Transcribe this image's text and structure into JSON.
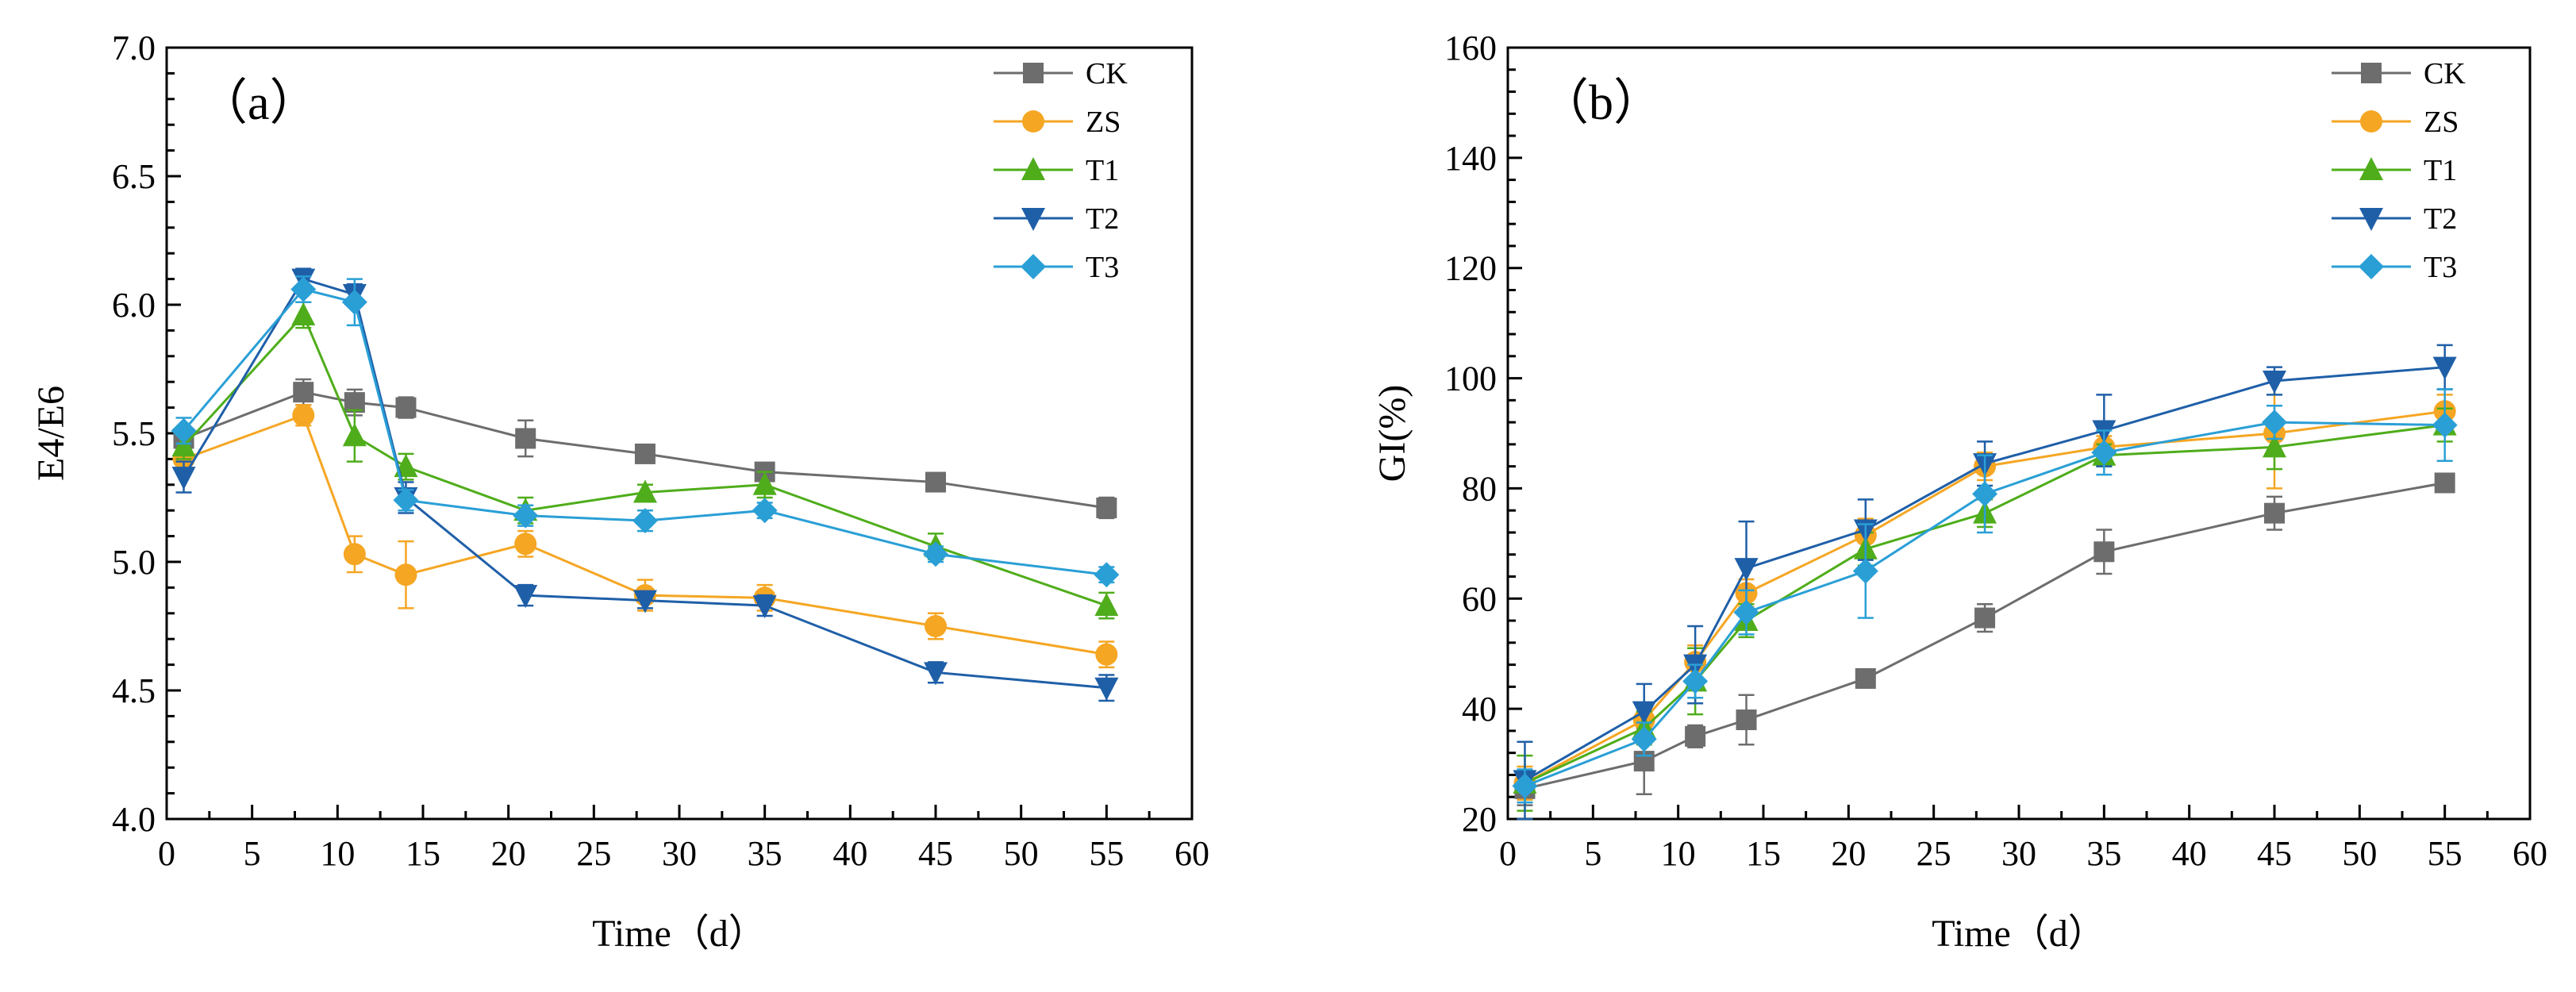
{
  "chart_data": [
    {
      "type": "line",
      "panel_label": "（a）",
      "xlabel": "Time（d）",
      "ylabel": "E4/E6",
      "xlim": [
        0,
        60
      ],
      "ylim": [
        4.0,
        7.0
      ],
      "xticks": [
        0,
        5,
        10,
        15,
        20,
        25,
        30,
        35,
        40,
        45,
        50,
        55,
        60
      ],
      "yticks": [
        4.0,
        4.5,
        5.0,
        5.5,
        6.0,
        6.5,
        7.0
      ],
      "ytick_labels": [
        "4.0",
        "4.5",
        "5.0",
        "5.5",
        "6.0",
        "6.5",
        "7.0"
      ],
      "x": [
        1,
        8,
        11,
        14,
        21,
        28,
        35,
        45,
        55
      ],
      "legend_position": "top-right",
      "series": [
        {
          "name": "CK",
          "color": "#6d6d6d",
          "marker": "square",
          "values": [
            5.48,
            5.66,
            5.62,
            5.6,
            5.48,
            5.42,
            5.35,
            5.31,
            5.21
          ],
          "errors": [
            0.04,
            0.05,
            0.05,
            0.04,
            0.07,
            0.02,
            0.02,
            0.02,
            0.04
          ]
        },
        {
          "name": "ZS",
          "color": "#f5a623",
          "marker": "circle",
          "values": [
            5.4,
            5.57,
            5.03,
            4.95,
            5.07,
            4.87,
            4.86,
            4.75,
            4.64
          ],
          "errors": [
            0.03,
            0.04,
            0.07,
            0.13,
            0.05,
            0.06,
            0.05,
            0.05,
            0.05
          ]
        },
        {
          "name": "T1",
          "color": "#4fad1b",
          "marker": "triangle-up",
          "values": [
            5.45,
            5.96,
            5.49,
            5.37,
            5.2,
            5.27,
            5.3,
            5.06,
            4.83
          ],
          "errors": [
            0.05,
            0.05,
            0.1,
            0.05,
            0.05,
            0.03,
            0.05,
            0.05,
            0.05
          ]
        },
        {
          "name": "T2",
          "color": "#1f5fa8",
          "marker": "triangle-down",
          "values": [
            5.33,
            6.1,
            6.04,
            5.25,
            4.87,
            4.85,
            4.83,
            4.57,
            4.51
          ],
          "errors": [
            0.06,
            0.04,
            0.04,
            0.06,
            0.04,
            0.03,
            0.04,
            0.04,
            0.05
          ]
        },
        {
          "name": "T3",
          "color": "#2a9fd6",
          "marker": "diamond",
          "values": [
            5.51,
            6.06,
            6.01,
            5.24,
            5.18,
            5.16,
            5.2,
            5.03,
            4.95
          ],
          "errors": [
            0.05,
            0.05,
            0.09,
            0.04,
            0.04,
            0.04,
            0.03,
            0.03,
            0.03
          ]
        }
      ]
    },
    {
      "type": "line",
      "panel_label": "（b）",
      "xlabel": "Time（d）",
      "ylabel": "GI(%)",
      "xlim": [
        0,
        60
      ],
      "ylim": [
        20,
        160
      ],
      "xticks": [
        0,
        5,
        10,
        15,
        20,
        25,
        30,
        35,
        40,
        45,
        50,
        55,
        60
      ],
      "yticks": [
        20,
        40,
        60,
        80,
        100,
        120,
        140,
        160
      ],
      "ytick_labels": [
        "20",
        "40",
        "60",
        "80",
        "100",
        "120",
        "140",
        "160"
      ],
      "x": [
        1,
        8,
        11,
        14,
        21,
        28,
        35,
        45,
        55
      ],
      "legend_position": "top-right",
      "series": [
        {
          "name": "CK",
          "color": "#6d6d6d",
          "marker": "square",
          "values": [
            25.5,
            30.5,
            35.0,
            38.0,
            45.5,
            56.5,
            68.5,
            75.5,
            81.0
          ],
          "errors": [
            3.0,
            6.0,
            2.0,
            4.5,
            1.0,
            2.5,
            4.0,
            3.0,
            1.0
          ]
        },
        {
          "name": "ZS",
          "color": "#f5a623",
          "marker": "circle",
          "values": [
            26.5,
            38.0,
            48.5,
            61.0,
            71.5,
            84.0,
            87.5,
            90.0,
            94.0
          ],
          "errors": [
            3.0,
            3.0,
            3.0,
            2.5,
            3.0,
            2.5,
            2.0,
            10.0,
            3.0
          ]
        },
        {
          "name": "T1",
          "color": "#4fad1b",
          "marker": "triangle-up",
          "values": [
            26.5,
            36.5,
            45.0,
            56.0,
            69.0,
            75.5,
            86.0,
            87.5,
            91.5
          ],
          "errors": [
            5.0,
            3.0,
            6.0,
            3.0,
            3.0,
            2.5,
            2.0,
            4.0,
            3.0
          ]
        },
        {
          "name": "T2",
          "color": "#1f5fa8",
          "marker": "triangle-down",
          "values": [
            27.0,
            39.5,
            48.0,
            65.5,
            72.5,
            84.5,
            90.5,
            99.5,
            102.0
          ],
          "errors": [
            7.0,
            5.0,
            7.0,
            8.5,
            5.5,
            4.0,
            6.5,
            2.5,
            4.0
          ]
        },
        {
          "name": "T3",
          "color": "#2a9fd6",
          "marker": "diamond",
          "values": [
            26.0,
            34.5,
            45.0,
            57.5,
            65.0,
            79.0,
            86.5,
            92.0,
            91.5
          ],
          "errors": [
            3.0,
            3.0,
            3.0,
            4.0,
            8.5,
            7.0,
            4.0,
            3.0,
            6.5
          ]
        }
      ]
    }
  ]
}
